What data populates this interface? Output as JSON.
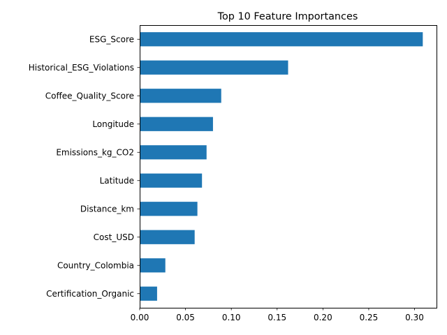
{
  "chart_data": {
    "type": "bar",
    "orientation": "horizontal",
    "title": "Top 10 Feature Importances",
    "xlabel": "",
    "ylabel": "",
    "categories": [
      "ESG_Score",
      "Historical_ESG_Violations",
      "Coffee_Quality_Score",
      "Longitude",
      "Emissions_kg_CO2",
      "Latitude",
      "Distance_km",
      "Cost_USD",
      "Country_Colombia",
      "Certification_Organic"
    ],
    "values": [
      0.309,
      0.162,
      0.089,
      0.08,
      0.073,
      0.068,
      0.063,
      0.06,
      0.028,
      0.019
    ],
    "xlim": [
      0,
      0.324
    ],
    "xticks": [
      0.0,
      0.05,
      0.1,
      0.15,
      0.2,
      0.25,
      0.3
    ],
    "xtick_labels": [
      "0.00",
      "0.05",
      "0.10",
      "0.15",
      "0.20",
      "0.25",
      "0.30"
    ],
    "grid": false,
    "legend": "none",
    "bar_color": "#1f77b4"
  }
}
